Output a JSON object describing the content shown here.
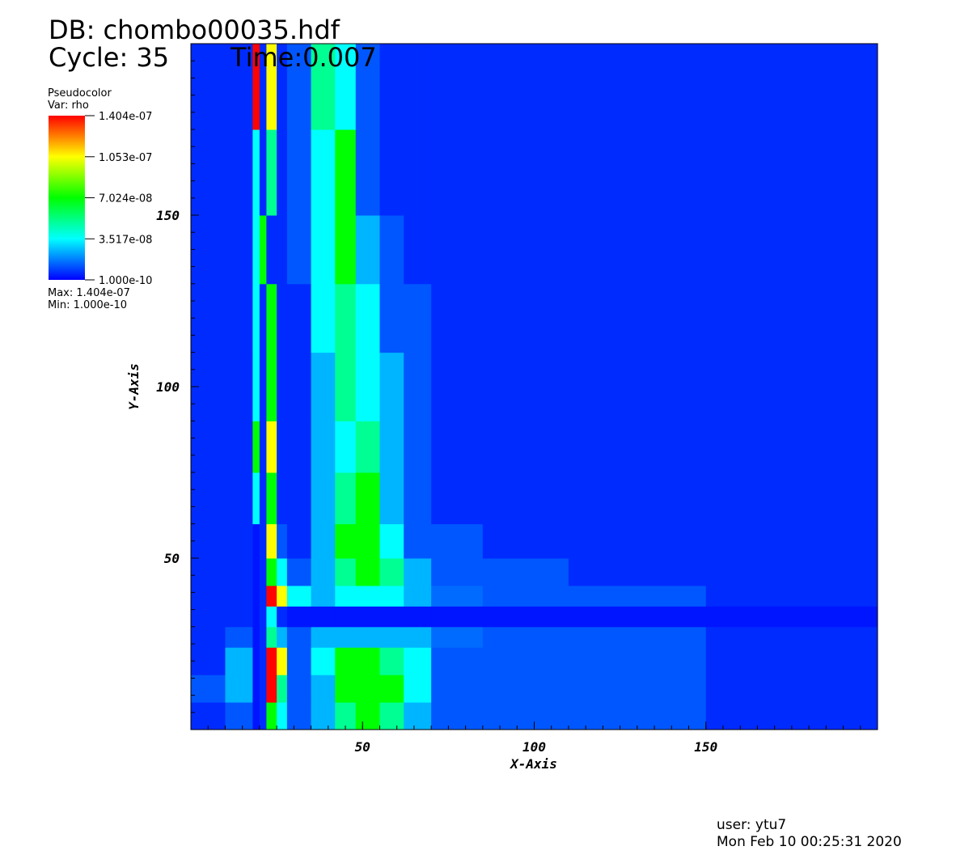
{
  "chart_data": {
    "type": "heatmap",
    "title": "DB: chombo00035.hdf",
    "cycle": "Cycle: 35",
    "time": "Time:0.007",
    "legend_title": "Pseudocolor",
    "legend_var": "Var: rho",
    "legend_max": "Max:  1.404e-07",
    "legend_min": "Min:  1.000e-10",
    "xlabel": "X-Axis",
    "ylabel": "Y-Axis",
    "user": "user: ytu7",
    "date": "Mon Feb 10 00:25:31 2020",
    "xlim": [
      0,
      200
    ],
    "ylim": [
      0,
      200
    ],
    "xticks": [
      50,
      100,
      150
    ],
    "yticks": [
      50,
      100,
      150
    ],
    "zlim": [
      1e-10,
      1.404e-07
    ],
    "zticks": [
      {
        "value": 1.404e-07,
        "label": "1.404e-07"
      },
      {
        "value": 1.053e-07,
        "label": "1.053e-07"
      },
      {
        "value": 7.024e-08,
        "label": "7.024e-08"
      },
      {
        "value": 3.517e-08,
        "label": "3.517e-08"
      },
      {
        "value": 1e-10,
        "label": "1.000e-10"
      }
    ],
    "colormap": [
      "#0000ff",
      "#00ffff",
      "#00ff00",
      "#ffff00",
      "#ff0000"
    ],
    "x_edges": [
      0,
      10,
      18,
      20,
      22,
      25,
      28,
      35,
      42,
      48,
      55,
      62,
      70,
      85,
      110,
      150,
      200
    ],
    "y_edges": [
      0,
      8,
      16,
      24,
      30,
      36,
      42,
      50,
      60,
      75,
      90,
      110,
      130,
      150,
      175,
      200
    ],
    "z": [
      [
        6e-09,
        1.2e-08,
        3e-09,
        6e-09,
        7e-08,
        3.5e-08,
        1.2e-08,
        2.5e-08,
        5e-08,
        7e-08,
        5e-08,
        2.5e-08,
        1.2e-08,
        1.2e-08,
        1.2e-08,
        6e-09
      ],
      [
        1.2e-08,
        2.5e-08,
        3e-09,
        6e-09,
        1.4e-07,
        5e-08,
        1.2e-08,
        2.5e-08,
        7e-08,
        7e-08,
        7e-08,
        3.5e-08,
        1.2e-08,
        1.2e-08,
        1.2e-08,
        6e-09
      ],
      [
        6e-09,
        2.5e-08,
        3e-09,
        6e-09,
        1.4e-07,
        1.05e-07,
        1.2e-08,
        3.5e-08,
        7e-08,
        7e-08,
        5e-08,
        3.5e-08,
        1.2e-08,
        1.2e-08,
        1.2e-08,
        6e-09
      ],
      [
        6e-09,
        1.2e-08,
        3e-09,
        6e-09,
        5e-08,
        2.5e-08,
        1.2e-08,
        2.5e-08,
        2.5e-08,
        2.5e-08,
        2.5e-08,
        2.5e-08,
        1.5e-08,
        1.2e-08,
        1.2e-08,
        6e-09
      ],
      [
        6e-09,
        6e-09,
        3e-09,
        6e-09,
        3.5e-08,
        6e-09,
        3e-09,
        3e-09,
        3e-09,
        3e-09,
        3e-09,
        3e-09,
        3e-09,
        3e-09,
        3e-09,
        3e-09
      ],
      [
        6e-09,
        6e-09,
        3e-09,
        6e-09,
        1.4e-07,
        1.05e-07,
        3.5e-08,
        2.5e-08,
        3.5e-08,
        3.5e-08,
        3.5e-08,
        2.5e-08,
        1.5e-08,
        1.2e-08,
        1.2e-08,
        6e-09
      ],
      [
        6e-09,
        6e-09,
        3e-09,
        6e-09,
        7e-08,
        3.5e-08,
        1.2e-08,
        2.5e-08,
        5e-08,
        7e-08,
        5e-08,
        2.5e-08,
        1.2e-08,
        1.2e-08,
        6e-09,
        6e-09
      ],
      [
        6e-09,
        6e-09,
        3e-09,
        6e-09,
        1.05e-07,
        1.2e-08,
        6e-09,
        2.5e-08,
        7e-08,
        7e-08,
        3.5e-08,
        1.2e-08,
        1.2e-08,
        6e-09,
        6e-09,
        6e-09
      ],
      [
        6e-09,
        6e-09,
        3.5e-08,
        6e-09,
        7e-08,
        6e-09,
        6e-09,
        2.5e-08,
        5e-08,
        7e-08,
        2.5e-08,
        1.2e-08,
        6e-09,
        6e-09,
        6e-09,
        6e-09
      ],
      [
        6e-09,
        6e-09,
        7e-08,
        6e-09,
        1.05e-07,
        6e-09,
        6e-09,
        2.5e-08,
        3.5e-08,
        5e-08,
        2.5e-08,
        1.2e-08,
        6e-09,
        6e-09,
        6e-09,
        6e-09
      ],
      [
        6e-09,
        6e-09,
        3.5e-08,
        6e-09,
        7e-08,
        6e-09,
        6e-09,
        2.5e-08,
        5e-08,
        3.5e-08,
        2.5e-08,
        1.2e-08,
        6e-09,
        6e-09,
        6e-09,
        6e-09
      ],
      [
        6e-09,
        6e-09,
        3.5e-08,
        6e-09,
        7e-08,
        6e-09,
        6e-09,
        3.5e-08,
        5e-08,
        3.5e-08,
        1.2e-08,
        1.2e-08,
        6e-09,
        6e-09,
        6e-09,
        6e-09
      ],
      [
        6e-09,
        6e-09,
        3.5e-08,
        7e-08,
        6e-09,
        6e-09,
        1.2e-08,
        3.5e-08,
        7e-08,
        2.5e-08,
        1.2e-08,
        6e-09,
        6e-09,
        6e-09,
        6e-09,
        6e-09
      ],
      [
        6e-09,
        6e-09,
        3.5e-08,
        6e-09,
        5e-08,
        6e-09,
        1.2e-08,
        3.5e-08,
        7e-08,
        1.2e-08,
        6e-09,
        6e-09,
        6e-09,
        6e-09,
        6e-09,
        6e-09
      ],
      [
        6e-09,
        6e-09,
        1.4e-07,
        6e-09,
        1.05e-07,
        6e-09,
        1.2e-08,
        5e-08,
        3.5e-08,
        1.2e-08,
        6e-09,
        6e-09,
        6e-09,
        6e-09,
        6e-09,
        6e-09
      ]
    ]
  }
}
